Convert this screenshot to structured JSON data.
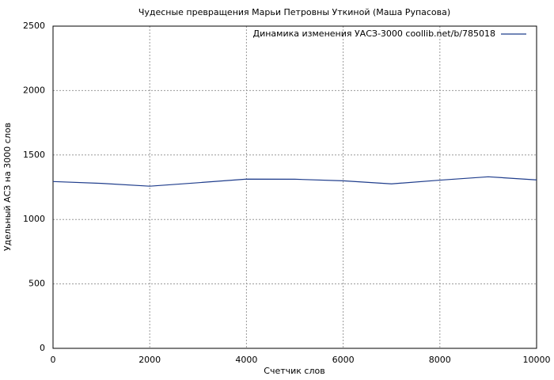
{
  "chart_data": {
    "type": "line",
    "title": "Чудесные превращения Марьи Петровны Уткиной (Маша Рупасова)",
    "x_label": "Счетчик слов",
    "y_label": "Удельный АСЗ на 3000 слов",
    "x": [
      0,
      1000,
      2000,
      3000,
      4000,
      5000,
      6000,
      7000,
      8000,
      9000,
      10000
    ],
    "series": [
      {
        "name": "Динамика изменения УАСЗ-3000 coollib.net/b/785018",
        "color": "#1f3d8c",
        "values": [
          1294,
          1280,
          1258,
          1285,
          1313,
          1312,
          1300,
          1276,
          1305,
          1331,
          1307
        ]
      }
    ],
    "xlim": [
      0,
      10000
    ],
    "xticks": [
      0,
      2000,
      4000,
      6000,
      8000,
      10000
    ],
    "ylim": [
      0,
      2500
    ],
    "yticks": [
      0,
      500,
      1000,
      1500,
      2000,
      2500
    ],
    "grid": true,
    "legend_position": "top-right"
  }
}
